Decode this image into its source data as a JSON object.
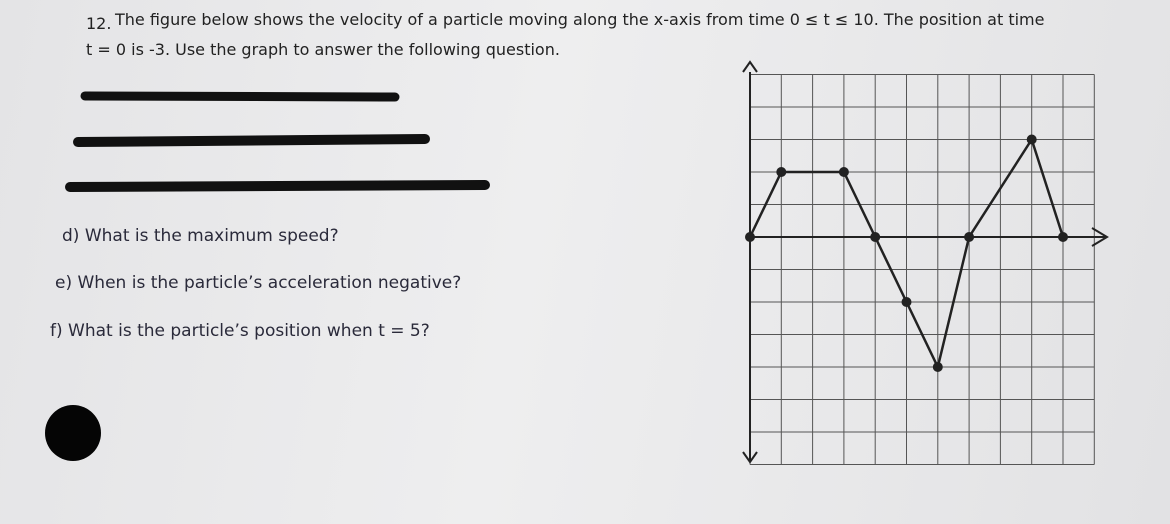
{
  "header": {
    "number": "12.",
    "line1": "The figure below shows the velocity of a particle moving along the x-axis from time 0 ≤ t ≤ 10. The position at time",
    "line2": "t = 0 is -3.  Use the graph to answer the following question."
  },
  "questions": [
    "d) What is the maximum speed?",
    "e) When is the particle’s acceleration negative?",
    "f) What is the particle’s position when t = 5?"
  ],
  "graph": {
    "type": "line",
    "x": [
      0,
      1,
      3,
      4,
      5,
      6,
      7,
      9,
      10
    ],
    "values": [
      0,
      2,
      2,
      0,
      -2,
      -4,
      0,
      3,
      0
    ],
    "xlim": [
      0,
      11
    ],
    "ylim": [
      -7,
      5
    ],
    "color": "#222"
  }
}
